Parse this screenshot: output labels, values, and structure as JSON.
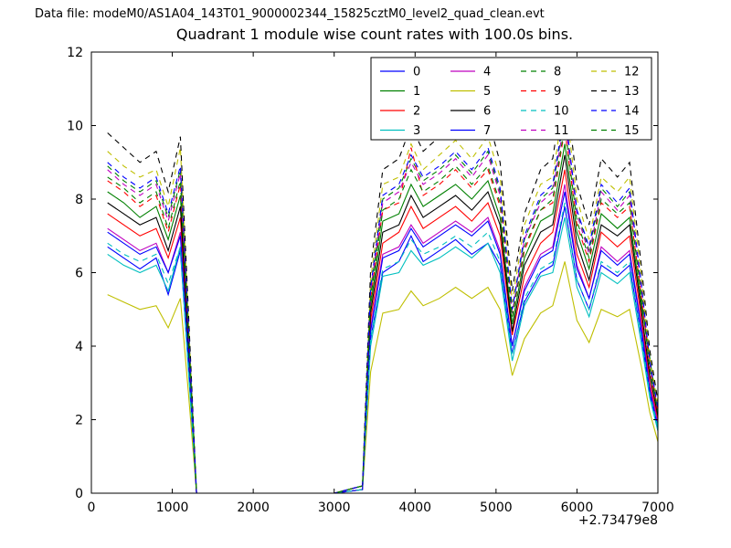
{
  "header": {
    "data_file_label": "Data file: modeM0/AS1A04_143T01_9000002344_15825cztM0_level2_quad_clean.evt"
  },
  "chart_data": {
    "type": "line",
    "title": "Quadrant 1 module wise count rates with 100.0s bins.",
    "xlabel": "",
    "ylabel": "",
    "xlim": [
      0,
      7000
    ],
    "ylim": [
      0,
      12
    ],
    "xticks": [
      0,
      1000,
      2000,
      3000,
      4000,
      5000,
      6000,
      7000
    ],
    "yticks": [
      0,
      2,
      4,
      6,
      8,
      10,
      12
    ],
    "x_offset_label": "+2.73479e8",
    "grid": false,
    "legend_position": "upper center-right",
    "legend_columns": 4,
    "x": [
      200,
      400,
      600,
      800,
      950,
      1100,
      1200,
      1300,
      2000,
      3000,
      3350,
      3450,
      3600,
      3800,
      3950,
      4100,
      4300,
      4500,
      4700,
      4900,
      5050,
      5200,
      5350,
      5550,
      5700,
      5850,
      6000,
      6150,
      6300,
      6500,
      6650,
      6800,
      6900,
      7000
    ],
    "series": [
      {
        "name": "0",
        "color": "#0000ff",
        "dashed": false,
        "values": [
          6.7,
          6.4,
          6.1,
          6.4,
          5.4,
          6.6,
          3.4,
          0,
          0,
          0,
          0.1,
          4.2,
          6.0,
          6.3,
          7.0,
          6.3,
          6.6,
          6.9,
          6.5,
          6.8,
          6.2,
          3.8,
          5.2,
          6.0,
          6.2,
          7.8,
          5.8,
          5.0,
          6.2,
          5.9,
          6.2,
          4.2,
          2.7,
          1.7
        ]
      },
      {
        "name": "1",
        "color": "#008000",
        "dashed": false,
        "values": [
          8.2,
          7.9,
          7.5,
          7.8,
          6.9,
          8.1,
          4.1,
          0,
          0,
          0,
          0.2,
          5.1,
          7.4,
          7.6,
          8.4,
          7.8,
          8.1,
          8.4,
          8.0,
          8.5,
          7.5,
          4.6,
          6.4,
          7.4,
          7.6,
          9.5,
          7.1,
          6.1,
          7.6,
          7.2,
          7.5,
          5.1,
          3.7,
          2.1
        ]
      },
      {
        "name": "2",
        "color": "#ff0000",
        "dashed": false,
        "values": [
          7.6,
          7.3,
          7.0,
          7.2,
          6.4,
          7.5,
          3.8,
          0,
          0,
          0,
          0.2,
          4.7,
          6.8,
          7.1,
          7.8,
          7.2,
          7.5,
          7.8,
          7.4,
          7.9,
          7.0,
          4.3,
          5.9,
          6.8,
          7.1,
          8.8,
          6.5,
          5.6,
          7.1,
          6.7,
          7.0,
          4.7,
          3.0,
          2.0
        ]
      },
      {
        "name": "3",
        "color": "#00bfbf",
        "dashed": false,
        "values": [
          6.5,
          6.2,
          6.0,
          6.2,
          5.5,
          6.7,
          3.3,
          0,
          0,
          0,
          0.1,
          4.0,
          5.9,
          6.0,
          6.6,
          6.2,
          6.4,
          6.7,
          6.4,
          6.8,
          6.0,
          3.6,
          5.1,
          5.9,
          6.0,
          7.5,
          5.6,
          4.8,
          6.0,
          5.7,
          6.0,
          4.0,
          2.6,
          1.7
        ]
      },
      {
        "name": "4",
        "color": "#bf00bf",
        "dashed": false,
        "values": [
          7.2,
          6.9,
          6.6,
          6.8,
          6.0,
          7.1,
          3.6,
          0,
          0,
          0,
          0.1,
          4.5,
          6.5,
          6.7,
          7.3,
          6.8,
          7.1,
          7.4,
          7.1,
          7.5,
          6.6,
          4.0,
          5.6,
          6.5,
          6.7,
          8.4,
          6.2,
          5.3,
          6.7,
          6.3,
          6.6,
          4.5,
          2.9,
          1.9
        ]
      },
      {
        "name": "5",
        "color": "#bfbf00",
        "dashed": false,
        "values": [
          5.4,
          5.2,
          5.0,
          5.1,
          4.5,
          5.3,
          2.7,
          0,
          0,
          0,
          0.1,
          3.3,
          4.9,
          5.0,
          5.5,
          5.1,
          5.3,
          5.6,
          5.3,
          5.6,
          5.0,
          3.2,
          4.2,
          4.9,
          5.1,
          6.3,
          4.7,
          4.1,
          5.0,
          4.8,
          5.0,
          3.4,
          2.2,
          1.4
        ]
      },
      {
        "name": "6",
        "color": "#000000",
        "dashed": false,
        "values": [
          7.9,
          7.6,
          7.3,
          7.5,
          6.6,
          7.8,
          4.0,
          0,
          0,
          0,
          0.2,
          4.9,
          7.1,
          7.3,
          8.1,
          7.5,
          7.8,
          8.1,
          7.7,
          8.2,
          7.3,
          4.4,
          6.2,
          7.1,
          7.3,
          9.2,
          6.8,
          5.8,
          7.3,
          7.0,
          7.3,
          4.9,
          3.2,
          2.1
        ]
      },
      {
        "name": "7",
        "color": "#0000ff",
        "dashed": false,
        "values": [
          7.1,
          6.8,
          6.5,
          6.7,
          6.0,
          7.0,
          3.6,
          0,
          0,
          0,
          0.1,
          4.4,
          6.4,
          6.6,
          7.2,
          6.7,
          7.0,
          7.3,
          7.0,
          7.4,
          6.5,
          4.0,
          5.5,
          6.4,
          6.6,
          8.2,
          6.1,
          5.3,
          6.6,
          6.2,
          6.5,
          4.4,
          2.8,
          1.8
        ]
      },
      {
        "name": "8",
        "color": "#008000",
        "dashed": true,
        "values": [
          8.9,
          8.5,
          8.2,
          8.5,
          7.5,
          8.8,
          4.5,
          0,
          0,
          0,
          0.2,
          5.5,
          8.0,
          8.3,
          9.1,
          8.5,
          8.8,
          9.2,
          8.7,
          9.3,
          8.2,
          5.0,
          6.9,
          8.0,
          8.3,
          10.3,
          7.7,
          6.6,
          8.3,
          7.8,
          8.2,
          5.5,
          3.6,
          2.3
        ]
      },
      {
        "name": "9",
        "color": "#ff0000",
        "dashed": true,
        "values": [
          8.5,
          8.2,
          7.8,
          8.1,
          7.1,
          8.4,
          4.3,
          0,
          0,
          0,
          0.2,
          5.3,
          7.7,
          7.9,
          9.4,
          8.1,
          8.4,
          8.8,
          8.3,
          8.8,
          7.8,
          4.8,
          6.6,
          7.7,
          7.9,
          9.9,
          7.3,
          6.3,
          7.9,
          7.5,
          7.8,
          5.3,
          3.4,
          2.2
        ]
      },
      {
        "name": "10",
        "color": "#00bfbf",
        "dashed": true,
        "values": [
          6.8,
          6.5,
          6.3,
          6.5,
          5.7,
          6.7,
          3.4,
          0,
          0,
          0,
          0.1,
          4.2,
          6.1,
          6.3,
          6.9,
          6.5,
          6.7,
          7.0,
          6.7,
          7.1,
          6.3,
          3.8,
          5.3,
          6.1,
          6.3,
          7.9,
          5.8,
          5.0,
          6.3,
          6.0,
          6.3,
          4.2,
          2.7,
          1.8
        ]
      },
      {
        "name": "11",
        "color": "#bf00bf",
        "dashed": true,
        "values": [
          8.8,
          8.4,
          8.1,
          8.4,
          7.4,
          8.7,
          4.4,
          0,
          0,
          0,
          0.2,
          5.5,
          7.9,
          8.2,
          9.0,
          8.4,
          8.7,
          9.1,
          8.6,
          9.2,
          8.1,
          4.9,
          6.9,
          7.9,
          8.2,
          10.2,
          7.6,
          6.5,
          8.2,
          7.7,
          8.1,
          5.5,
          3.5,
          2.3
        ]
      },
      {
        "name": "12",
        "color": "#bfbf00",
        "dashed": true,
        "values": [
          9.3,
          8.9,
          8.6,
          8.8,
          7.8,
          9.4,
          4.7,
          0,
          0,
          0,
          0.2,
          5.8,
          8.4,
          8.6,
          9.5,
          8.8,
          9.2,
          9.6,
          9.1,
          9.7,
          8.6,
          5.2,
          7.3,
          8.4,
          8.6,
          10.8,
          8.0,
          6.9,
          8.6,
          8.2,
          8.6,
          5.8,
          3.7,
          2.4
        ]
      },
      {
        "name": "13",
        "color": "#000000",
        "dashed": true,
        "values": [
          9.8,
          9.4,
          9.0,
          9.3,
          8.2,
          9.7,
          4.9,
          0,
          0,
          0,
          0.2,
          6.1,
          8.8,
          9.1,
          10.0,
          9.3,
          9.7,
          10.1,
          9.6,
          10.2,
          9.0,
          5.5,
          7.6,
          8.8,
          9.1,
          11.3,
          8.4,
          7.3,
          9.1,
          8.6,
          9.0,
          6.1,
          3.9,
          2.5
        ]
      },
      {
        "name": "14",
        "color": "#0000ff",
        "dashed": true,
        "values": [
          9.0,
          8.6,
          8.3,
          8.6,
          7.6,
          8.9,
          4.5,
          0,
          0,
          0,
          0.2,
          5.6,
          8.1,
          8.4,
          9.2,
          8.6,
          8.9,
          9.3,
          8.8,
          9.4,
          8.3,
          5.0,
          7.0,
          8.1,
          8.4,
          10.4,
          7.7,
          6.7,
          8.4,
          7.9,
          8.3,
          5.6,
          3.6,
          2.3
        ]
      },
      {
        "name": "15",
        "color": "#008000",
        "dashed": true,
        "values": [
          8.6,
          8.3,
          7.9,
          8.2,
          7.2,
          8.5,
          4.3,
          0,
          0,
          0,
          0.2,
          5.3,
          7.7,
          8.0,
          8.8,
          8.2,
          8.5,
          8.9,
          8.4,
          8.9,
          7.9,
          4.8,
          6.7,
          7.7,
          8.0,
          10.0,
          7.4,
          6.4,
          8.0,
          7.6,
          7.9,
          5.3,
          3.4,
          2.2
        ]
      }
    ]
  }
}
